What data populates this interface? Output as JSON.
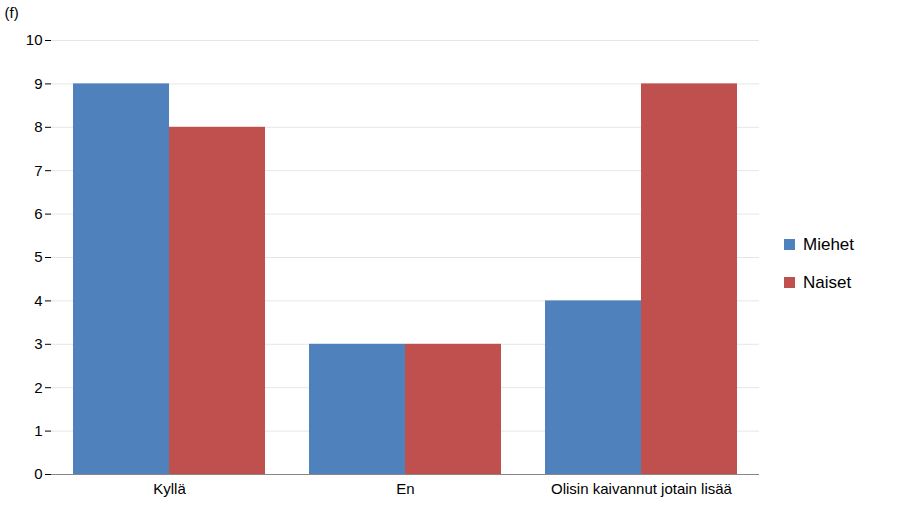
{
  "chart_data": {
    "type": "bar",
    "y_label": "(f)",
    "categories": [
      "Kyllä",
      "En",
      "Olisin kaivannut jotain lisää"
    ],
    "series": [
      {
        "name": "Miehet",
        "color": "#4f81bd",
        "values": [
          9,
          3,
          4
        ]
      },
      {
        "name": "Naiset",
        "color": "#c0504d",
        "values": [
          8,
          3,
          9
        ]
      }
    ],
    "ylim": [
      0,
      10
    ],
    "yticks": [
      0,
      1,
      2,
      3,
      4,
      5,
      6,
      7,
      8,
      9,
      10
    ],
    "grid": true,
    "legend": "right"
  }
}
